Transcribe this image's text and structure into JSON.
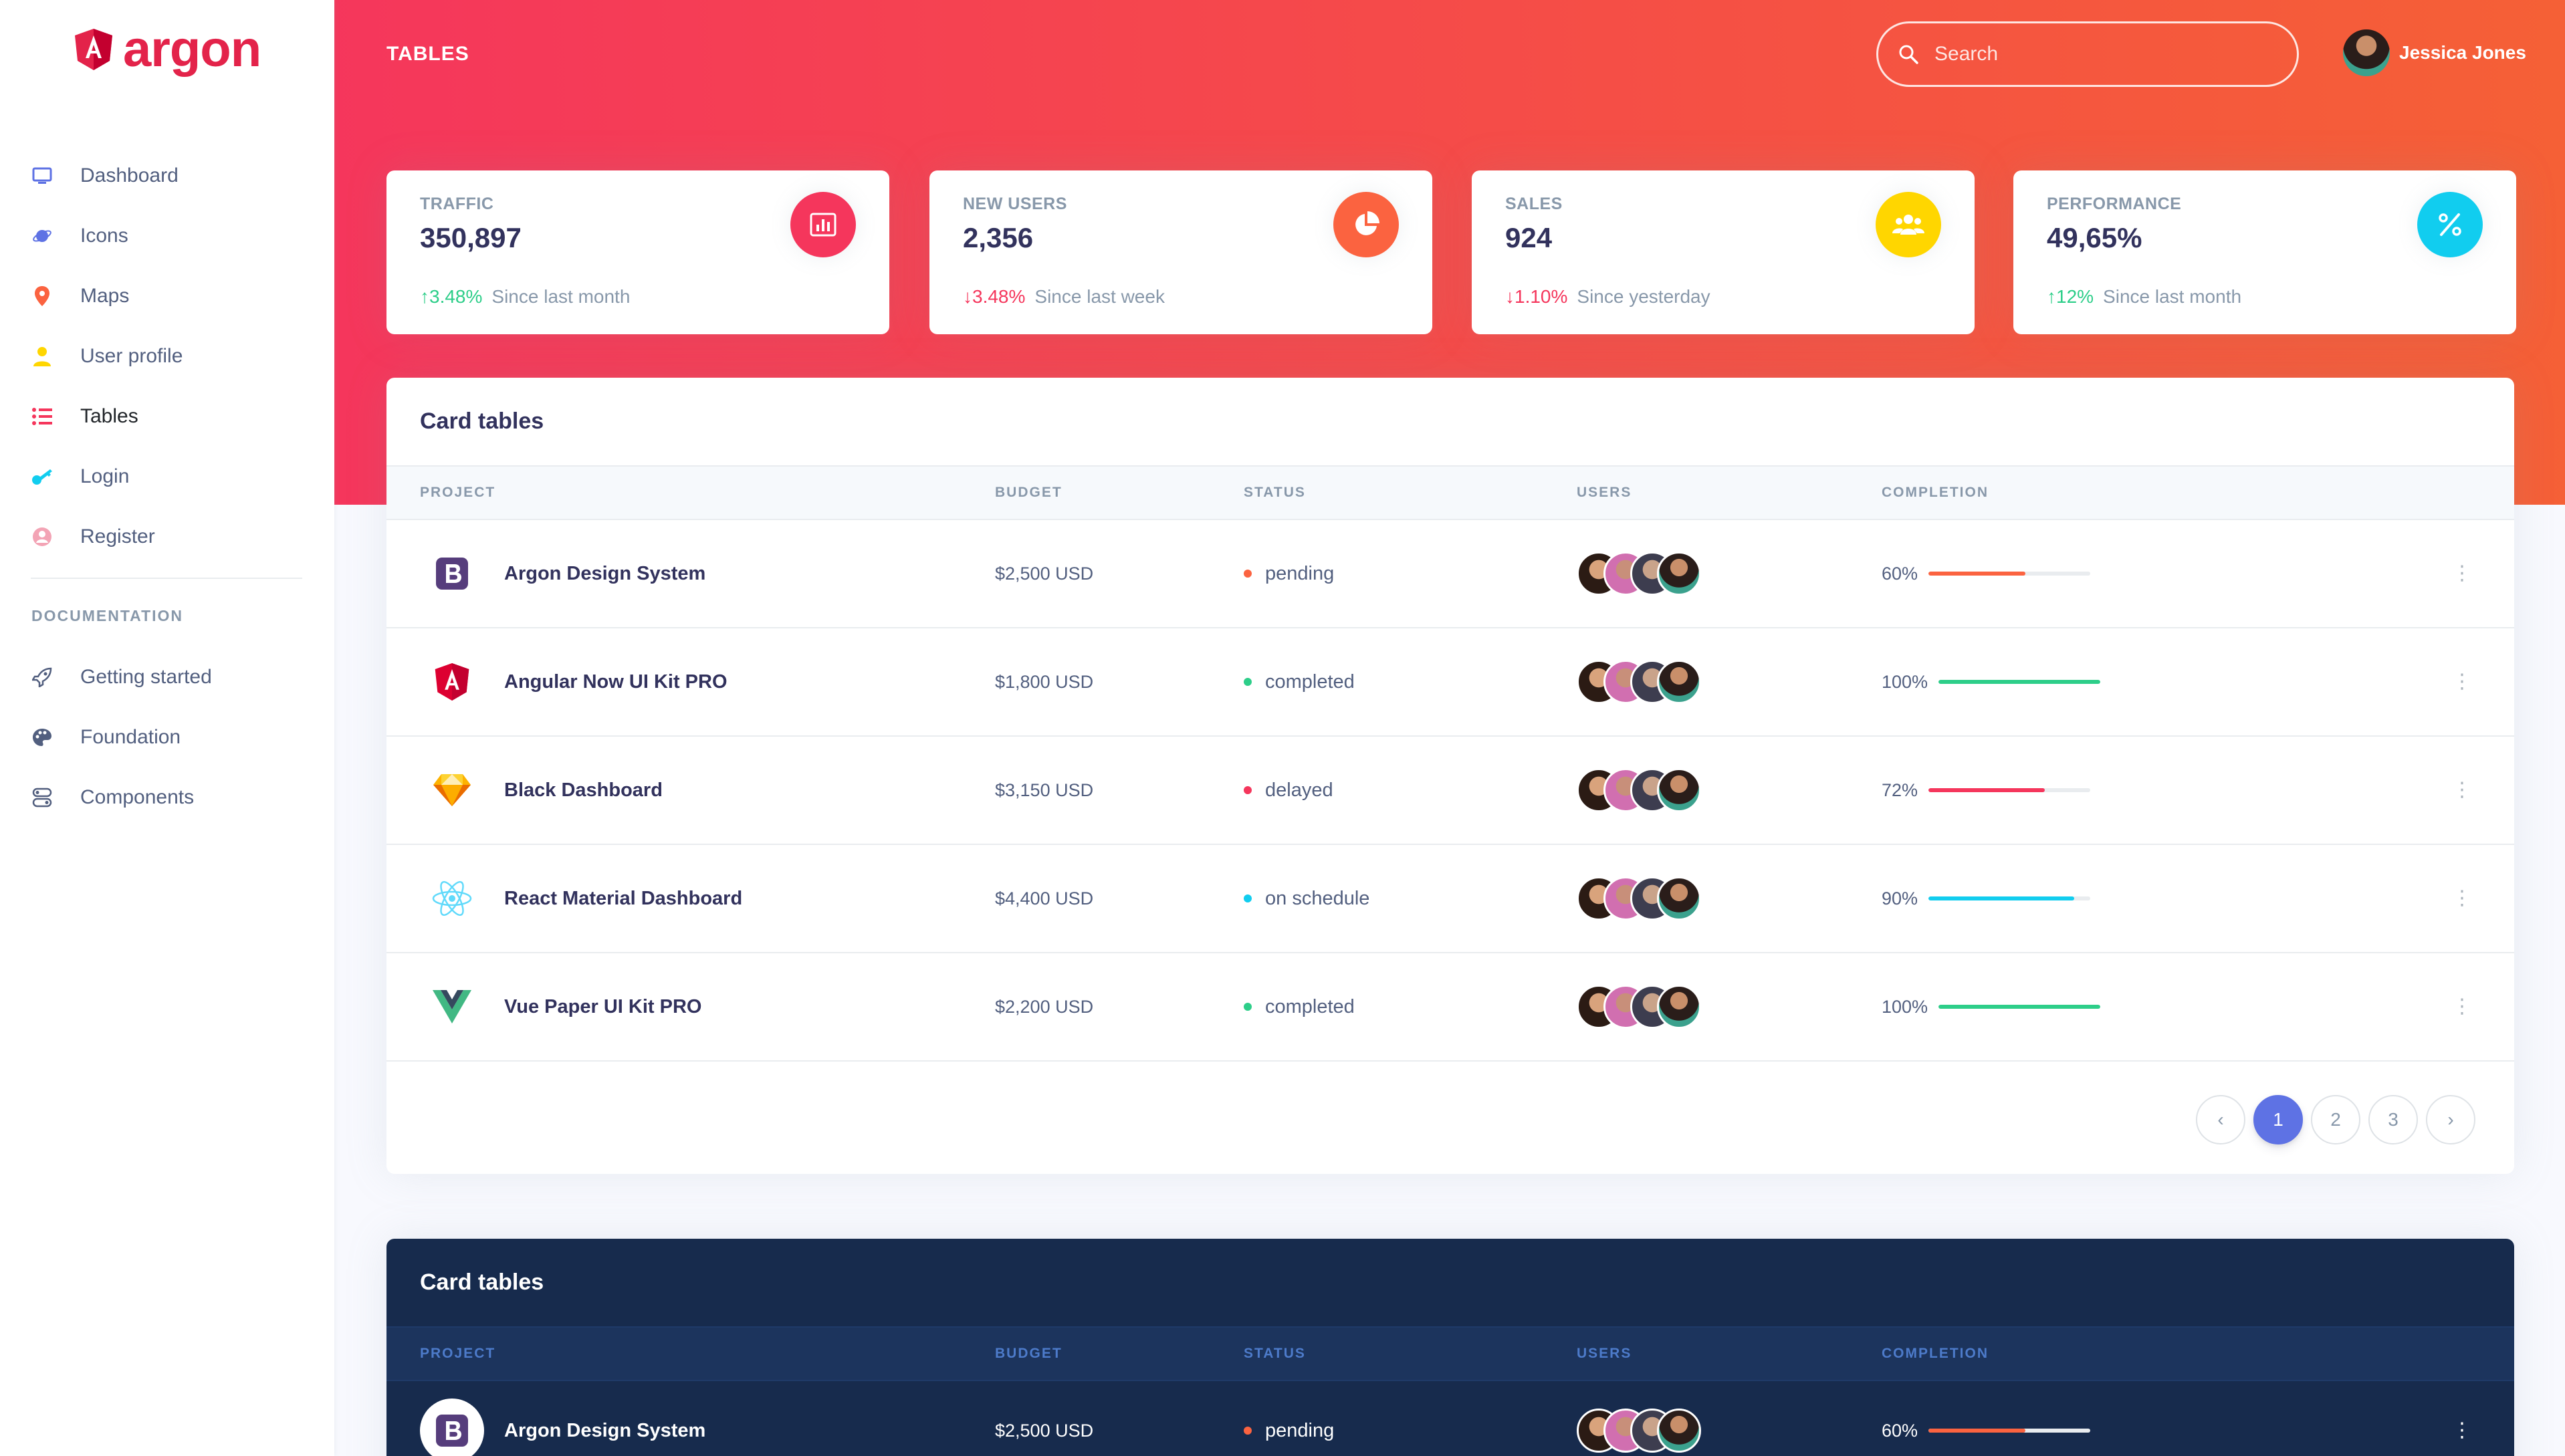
{
  "brand": {
    "name": "argon",
    "color": "#e3234a"
  },
  "sidebar": {
    "items": [
      {
        "label": "Dashboard",
        "icon": "tv-icon",
        "color": "#5e72e4"
      },
      {
        "label": "Icons",
        "icon": "planet-icon",
        "color": "#5e72e4"
      },
      {
        "label": "Maps",
        "icon": "pin-icon",
        "color": "#fb6340"
      },
      {
        "label": "User profile",
        "icon": "user-icon",
        "color": "#ffd600"
      },
      {
        "label": "Tables",
        "icon": "bullet-list-icon",
        "color": "#f5365c"
      },
      {
        "label": "Login",
        "icon": "key-icon",
        "color": "#11cdef"
      },
      {
        "label": "Register",
        "icon": "circle-user-icon",
        "color": "#f3a4b5"
      }
    ],
    "doc_heading": "DOCUMENTATION",
    "doc_items": [
      {
        "label": "Getting started",
        "icon": "rocket-icon"
      },
      {
        "label": "Foundation",
        "icon": "palette-icon"
      },
      {
        "label": "Components",
        "icon": "ui-components-icon"
      }
    ]
  },
  "header": {
    "title": "TABLES",
    "search_placeholder": "Search",
    "user_name": "Jessica Jones"
  },
  "stats": [
    {
      "title": "TRAFFIC",
      "value": "350,897",
      "change": "3.48%",
      "direction": "up",
      "note": "Since last month",
      "icon": "bar-chart-icon",
      "color": "#f5365c"
    },
    {
      "title": "NEW USERS",
      "value": "2,356",
      "change": "3.48%",
      "direction": "down",
      "note": "Since last week",
      "icon": "pie-chart-icon",
      "color": "#fb6340"
    },
    {
      "title": "SALES",
      "value": "924",
      "change": "1.10%",
      "direction": "down",
      "note": "Since yesterday",
      "icon": "users-icon",
      "color": "#ffd600"
    },
    {
      "title": "PERFORMANCE",
      "value": "49,65%",
      "change": "12%",
      "direction": "up",
      "note": "Since last month",
      "icon": "percent-icon",
      "color": "#11cdef"
    }
  ],
  "table": {
    "title": "Card tables",
    "columns": [
      "PROJECT",
      "BUDGET",
      "STATUS",
      "USERS",
      "COMPLETION"
    ],
    "rows": [
      {
        "project": "Argon Design System",
        "logo": "bootstrap-icon",
        "budget": "$2,500 USD",
        "status": "pending",
        "status_color": "#fb6340",
        "completion": "60%",
        "completion_value": 60,
        "bar_color": "#fb6340"
      },
      {
        "project": "Angular Now UI Kit PRO",
        "logo": "angular-icon",
        "budget": "$1,800 USD",
        "status": "completed",
        "status_color": "#2dce89",
        "completion": "100%",
        "completion_value": 100,
        "bar_color": "#2dce89"
      },
      {
        "project": "Black Dashboard",
        "logo": "sketch-icon",
        "budget": "$3,150 USD",
        "status": "delayed",
        "status_color": "#f5365c",
        "completion": "72%",
        "completion_value": 72,
        "bar_color": "#f5365c"
      },
      {
        "project": "React Material Dashboard",
        "logo": "react-icon",
        "budget": "$4,400 USD",
        "status": "on schedule",
        "status_color": "#11cdef",
        "completion": "90%",
        "completion_value": 90,
        "bar_color": "#11cdef"
      },
      {
        "project": "Vue Paper UI Kit PRO",
        "logo": "vue-icon",
        "budget": "$2,200 USD",
        "status": "completed",
        "status_color": "#2dce89",
        "completion": "100%",
        "completion_value": 100,
        "bar_color": "#2dce89"
      }
    ],
    "pagination": {
      "prev": "‹",
      "pages": [
        "1",
        "2",
        "3"
      ],
      "current": "1",
      "next": "›"
    }
  },
  "dark_table": {
    "title": "Card tables",
    "columns": [
      "PROJECT",
      "BUDGET",
      "STATUS",
      "USERS",
      "COMPLETION"
    ],
    "rows": [
      {
        "project": "Argon Design System",
        "logo": "bootstrap-icon",
        "budget": "$2,500 USD",
        "status": "pending",
        "status_color": "#fb6340",
        "completion": "60%",
        "completion_value": 60,
        "bar_color": "#fb6340"
      }
    ]
  }
}
